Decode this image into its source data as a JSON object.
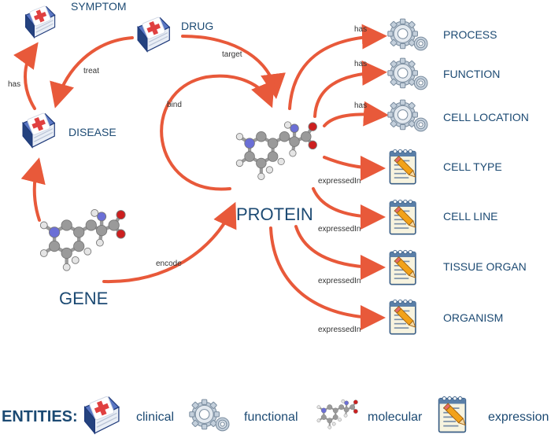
{
  "colors": {
    "edge": "#e8593a",
    "label": "#1c4a73",
    "book": "#2f4f9a",
    "cross": "#e04040",
    "gear": "#a9b8c6",
    "atom_carbon": "#8f8f8f",
    "atom_oxygen": "#cc1f1f",
    "atom_nitrogen": "#6b6fd6"
  },
  "nodes": {
    "symptom": {
      "label": "SYMPTOM",
      "icon": "clinical-book-icon"
    },
    "drug": {
      "label": "DRUG",
      "icon": "clinical-book-icon"
    },
    "disease": {
      "label": "DISEASE",
      "icon": "clinical-book-icon"
    },
    "gene": {
      "label": "GENE",
      "icon": "molecule-icon"
    },
    "protein": {
      "label": "PROTEIN",
      "icon": "molecule-icon"
    },
    "process": {
      "label": "PROCESS",
      "icon": "gears-icon"
    },
    "function": {
      "label": "FUNCTION",
      "icon": "gears-icon"
    },
    "cell_location": {
      "label": "CELL LOCATION",
      "icon": "gears-icon"
    },
    "cell_type": {
      "label": "CELL TYPE",
      "icon": "notepad-icon"
    },
    "cell_line": {
      "label": "CELL LINE",
      "icon": "notepad-icon"
    },
    "tissue_organ": {
      "label": "TISSUE ORGAN",
      "icon": "notepad-icon"
    },
    "organism": {
      "label": "ORGANISM",
      "icon": "notepad-icon"
    }
  },
  "edges": {
    "disease_symptom": "has",
    "drug_disease": "treat",
    "drug_protein": "target",
    "protein_bind": "bind",
    "gene_disease": "",
    "gene_protein": "encode",
    "protein_process": "has",
    "protein_function": "has",
    "protein_cell_location": "has",
    "protein_cell_type": "expressedIn",
    "protein_cell_line": "expressedIn",
    "protein_tissue_organ": "expressedIn",
    "protein_organism": "expressedIn"
  },
  "legend": {
    "title": "ENTITIES:",
    "items": [
      {
        "label": "clinical",
        "icon": "clinical-book-icon"
      },
      {
        "label": "functional",
        "icon": "gears-icon"
      },
      {
        "label": "molecular",
        "icon": "molecule-icon"
      },
      {
        "label": "expression",
        "icon": "notepad-icon"
      }
    ]
  }
}
